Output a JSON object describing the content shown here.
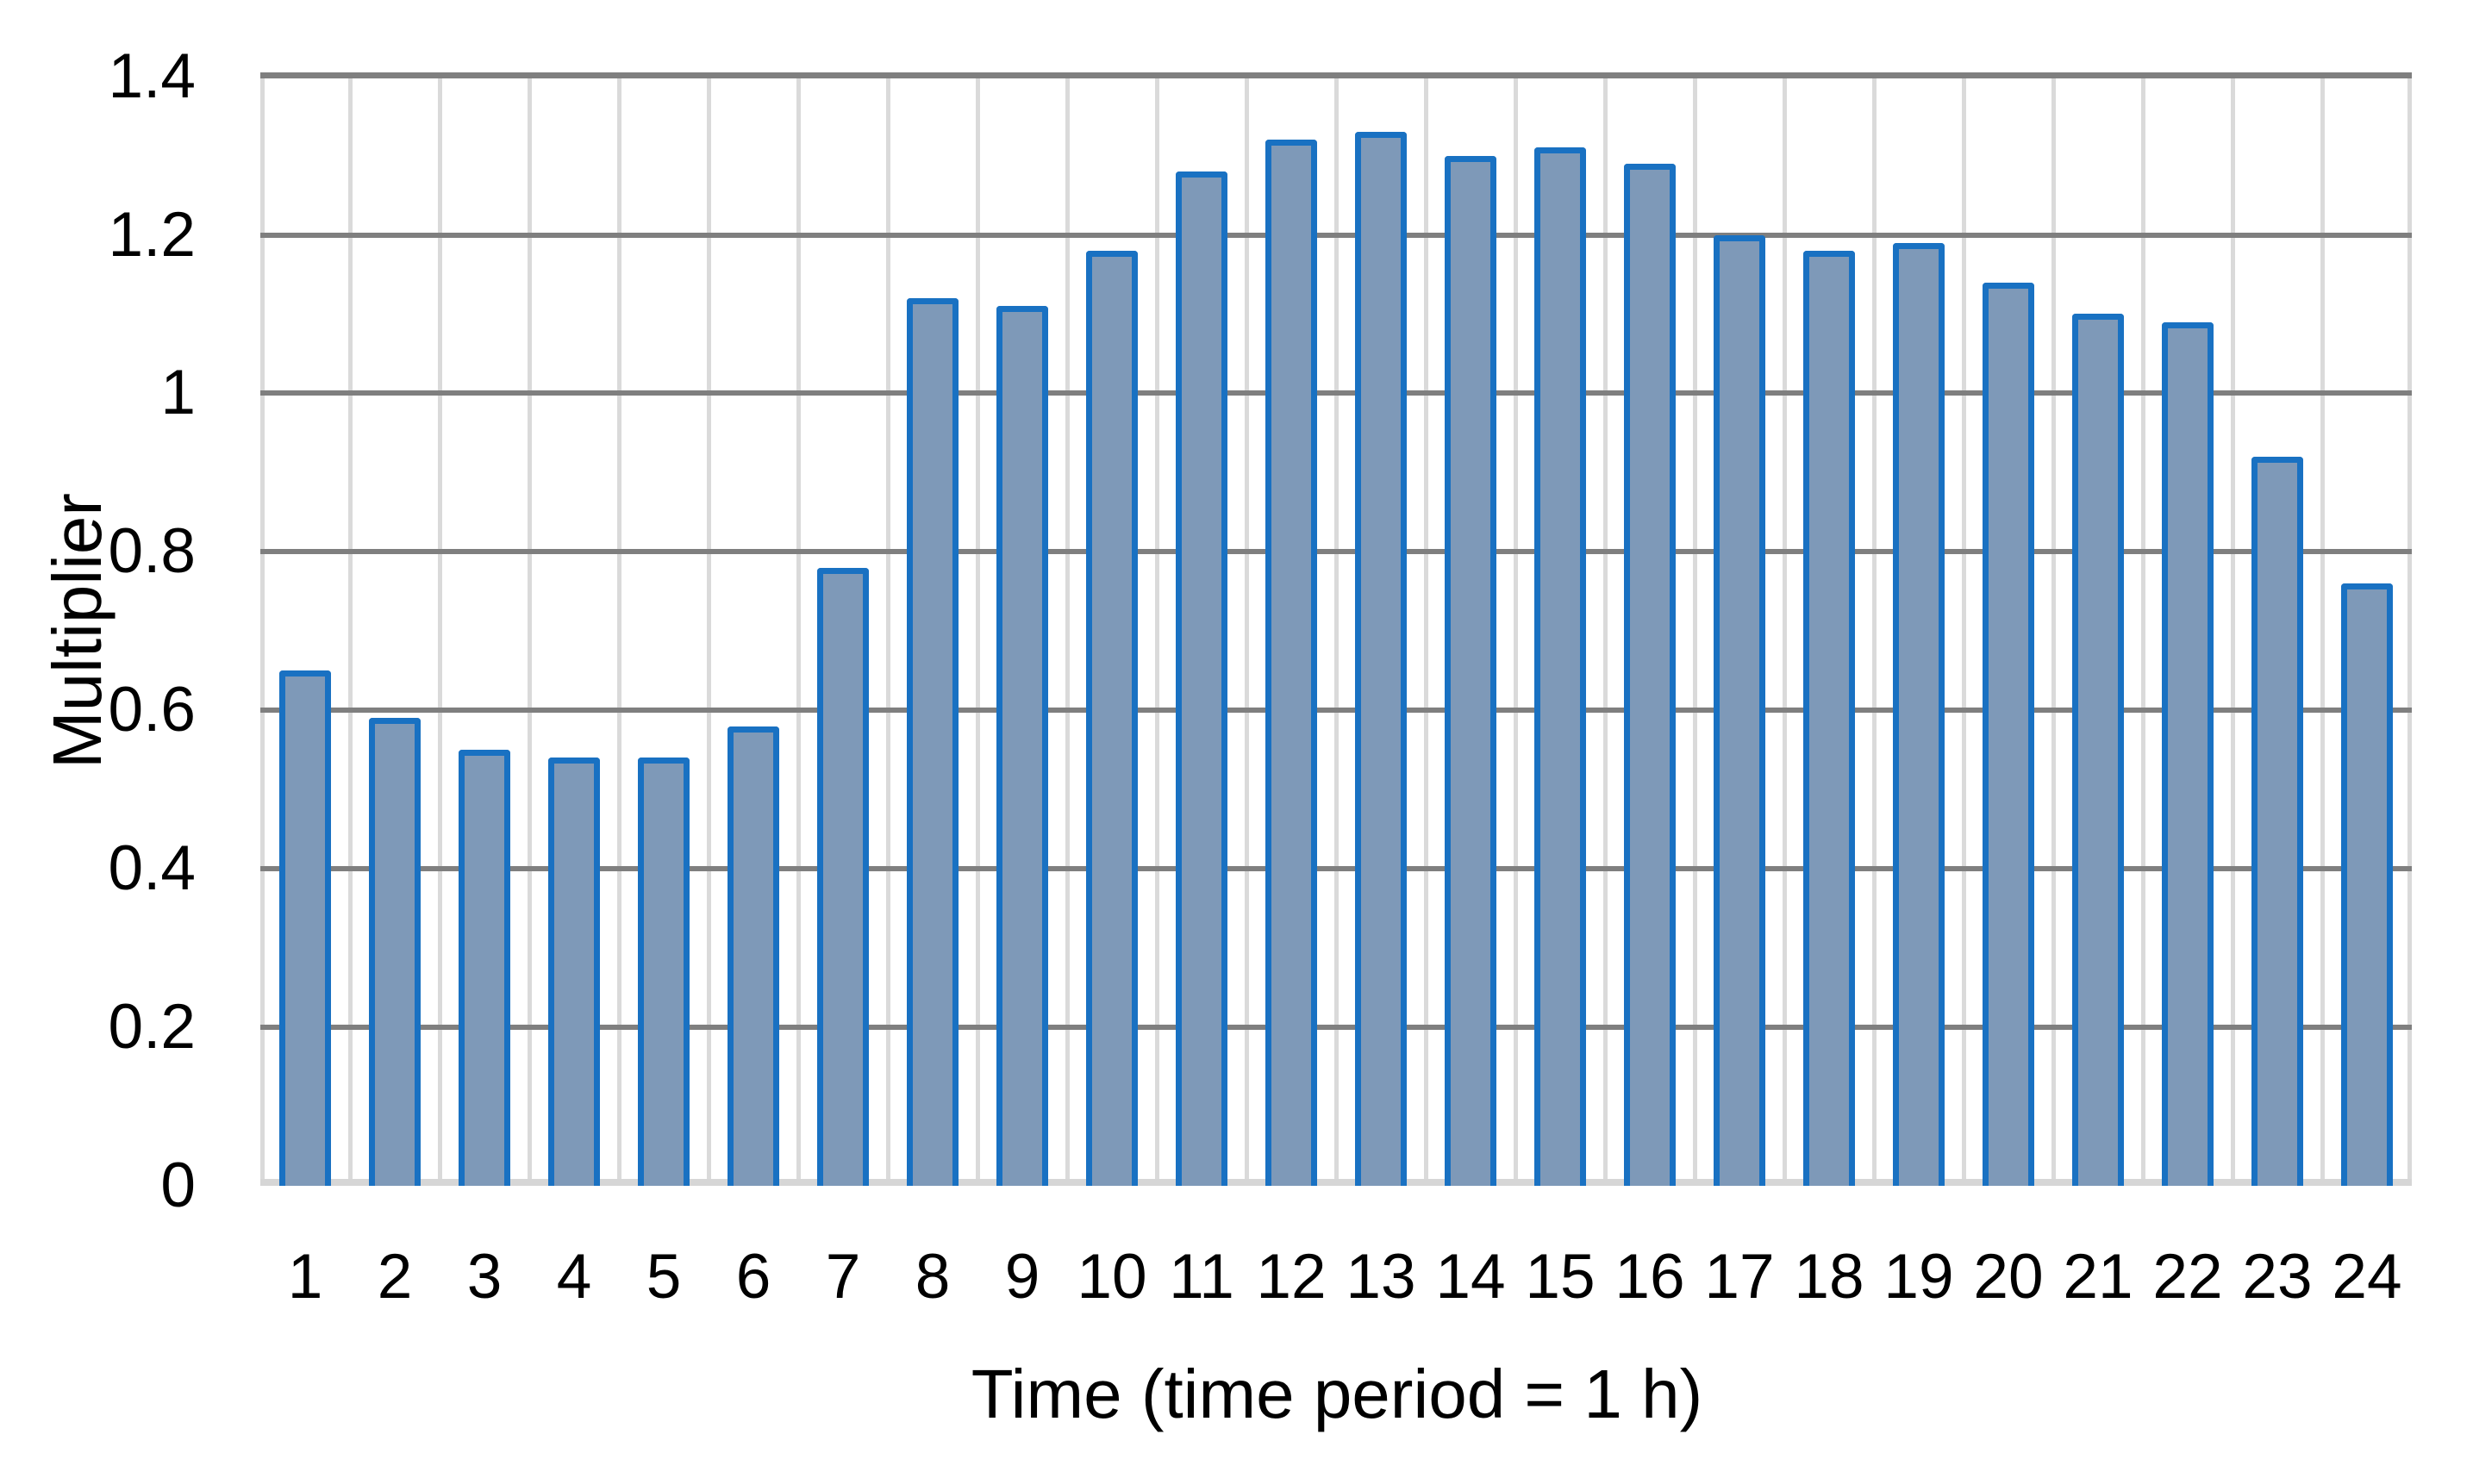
{
  "chart_data": {
    "type": "bar",
    "title": "",
    "xlabel": "Time (time period = 1 h)",
    "ylabel": "Multiplier",
    "categories": [
      "1",
      "2",
      "3",
      "4",
      "5",
      "6",
      "7",
      "8",
      "9",
      "10",
      "11",
      "12",
      "13",
      "14",
      "15",
      "16",
      "17",
      "18",
      "19",
      "20",
      "21",
      "22",
      "23",
      "24"
    ],
    "values": [
      0.65,
      0.59,
      0.55,
      0.54,
      0.54,
      0.58,
      0.78,
      1.12,
      1.11,
      1.18,
      1.28,
      1.32,
      1.33,
      1.3,
      1.31,
      1.29,
      1.2,
      1.18,
      1.19,
      1.14,
      1.1,
      1.09,
      0.92,
      0.76
    ],
    "ylim": [
      0,
      1.4
    ],
    "yticks": [
      {
        "value": 0,
        "label": "0"
      },
      {
        "value": 0.2,
        "label": "0.2"
      },
      {
        "value": 0.4,
        "label": "0.4"
      },
      {
        "value": 0.6,
        "label": "0.6"
      },
      {
        "value": 0.8,
        "label": "0.8"
      },
      {
        "value": 1,
        "label": "1"
      },
      {
        "value": 1.2,
        "label": "1.2"
      },
      {
        "value": 1.4,
        "label": "1.4"
      }
    ],
    "grid": {
      "horizontal_major": true,
      "vertical_category_lines": true,
      "legend": "none"
    },
    "colors": {
      "bar_fill": "#7E99B8",
      "bar_border": "#1971C2",
      "grid_major": "#7F7F7F",
      "grid_light": "#DADADA",
      "axis_line": "#D6D6D6",
      "text": "#000000",
      "background": "#FFFFFF"
    }
  }
}
